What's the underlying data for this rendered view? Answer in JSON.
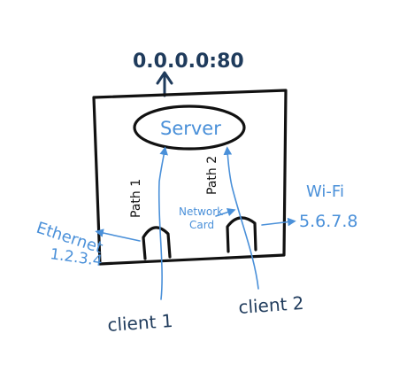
{
  "colors": {
    "ink": "#111111",
    "blue_annotation": "#4a90d9",
    "navy_heading": "#1f3b5c",
    "background": "#ffffff"
  },
  "header": {
    "bind_address": "0.0.0.0:80"
  },
  "server": {
    "label": "Server"
  },
  "paths": {
    "path1": "Path 1",
    "path2": "Path 2"
  },
  "nic": {
    "label_line1": "Network",
    "label_line2": "Card"
  },
  "interfaces": {
    "ethernet": {
      "name": "Ethernet",
      "address": "1.2.3.4"
    },
    "wifi": {
      "name": "Wi-Fi",
      "address": "5.6.7.8"
    }
  },
  "clients": {
    "client1": "client 1",
    "client2": "client 2"
  }
}
